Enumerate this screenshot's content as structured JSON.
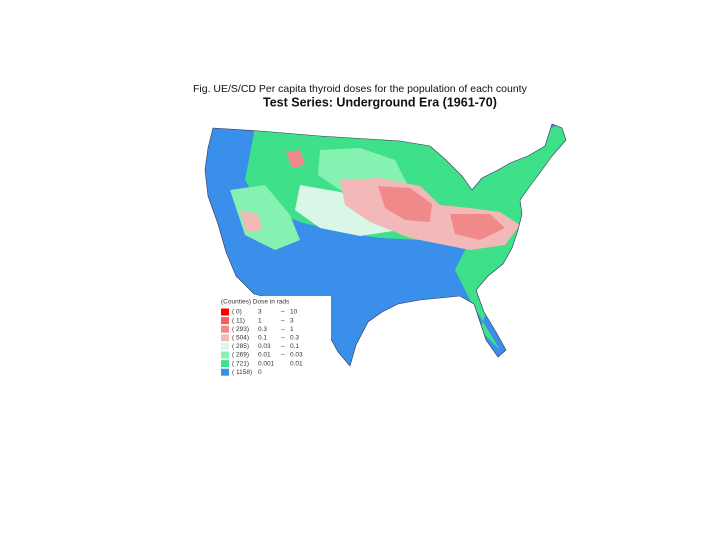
{
  "figure": {
    "caption": "Fig. UE/S/CD   Per capita thyroid doses for the population of each county",
    "subtitle": "Test Series:  Underground Era (1961-70)"
  },
  "legend": {
    "header": "(Counties)  Dose in rads",
    "rows": [
      {
        "count": "( 0)",
        "low": "3",
        "dash": "–",
        "high": "10",
        "color": "#ff0000"
      },
      {
        "count": "( 11)",
        "low": "1",
        "dash": "–",
        "high": "3",
        "color": "#ff5a5a"
      },
      {
        "count": "( 293)",
        "low": "0.3",
        "dash": "–",
        "high": "1",
        "color": "#f08a8a"
      },
      {
        "count": "( 504)",
        "low": "0.1",
        "dash": "–",
        "high": "0.3",
        "color": "#f3b8b8"
      },
      {
        "count": "( 285)",
        "low": "0.03",
        "dash": "–",
        "high": "0.1",
        "color": "#d8f7e6"
      },
      {
        "count": "( 269)",
        "low": "0.01",
        "dash": "–",
        "high": "0.03",
        "color": "#86f2b2"
      },
      {
        "count": "( 721)",
        "low": "0.001",
        "high": "0.01",
        "color": "#3fe08a"
      },
      {
        "count": "( 1158)",
        "low": "0",
        "color": "#3a8fea"
      }
    ]
  }
}
